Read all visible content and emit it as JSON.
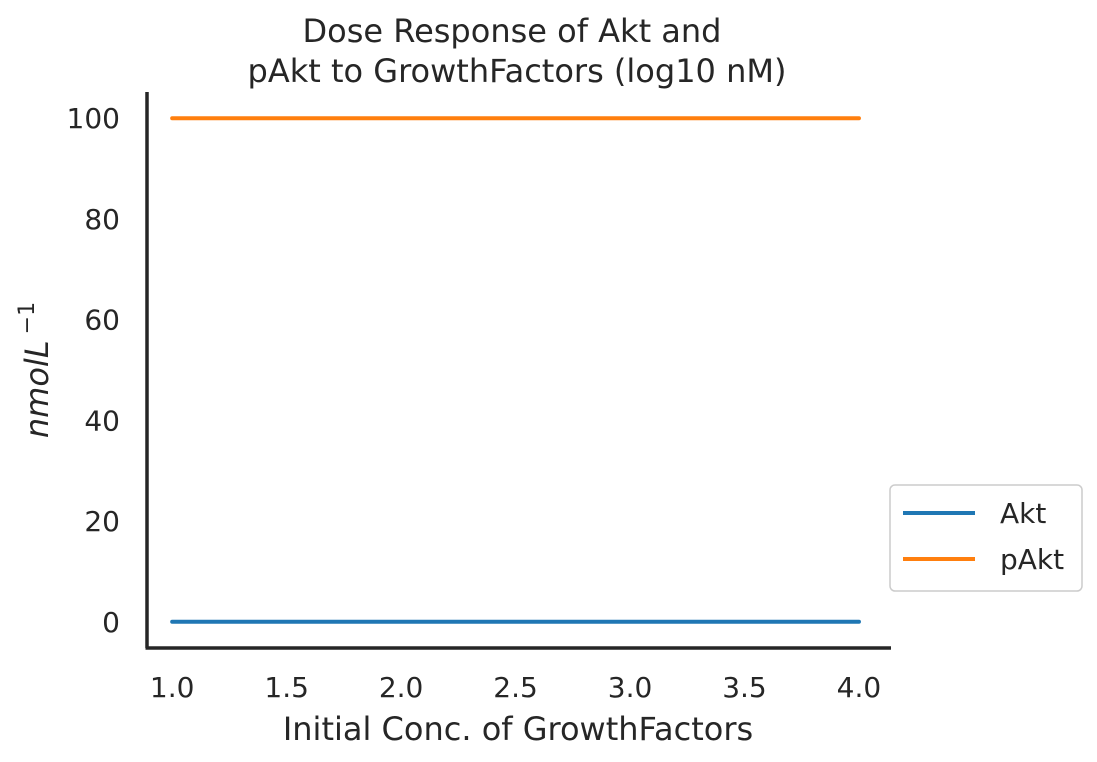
{
  "chart_data": {
    "type": "line",
    "title": [
      "Dose Response of Akt and",
      "pAkt to GrowthFactors (log10 nM)"
    ],
    "xlabel": "Initial Conc. of GrowthFactors",
    "ylabel": "nmolL",
    "ylabel_superscript": "−1",
    "xlim": [
      0.89,
      4.14
    ],
    "ylim": [
      -5.2,
      105.2
    ],
    "xticks": [
      1.0,
      1.5,
      2.0,
      2.5,
      3.0,
      3.5,
      4.0
    ],
    "xtick_labels": [
      "1.0",
      "1.5",
      "2.0",
      "2.5",
      "3.0",
      "3.5",
      "4.0"
    ],
    "yticks": [
      0,
      20,
      40,
      60,
      80,
      100
    ],
    "ytick_labels": [
      "0",
      "20",
      "40",
      "60",
      "80",
      "100"
    ],
    "grid": false,
    "legend_position": "right-center-outside",
    "series": [
      {
        "name": "Akt",
        "color": "#1f77b4",
        "x": [
          1.0,
          4.0
        ],
        "y": [
          0,
          0
        ]
      },
      {
        "name": "pAkt",
        "color": "#ff7f0e",
        "x": [
          1.0,
          4.0
        ],
        "y": [
          100,
          100
        ]
      }
    ]
  }
}
